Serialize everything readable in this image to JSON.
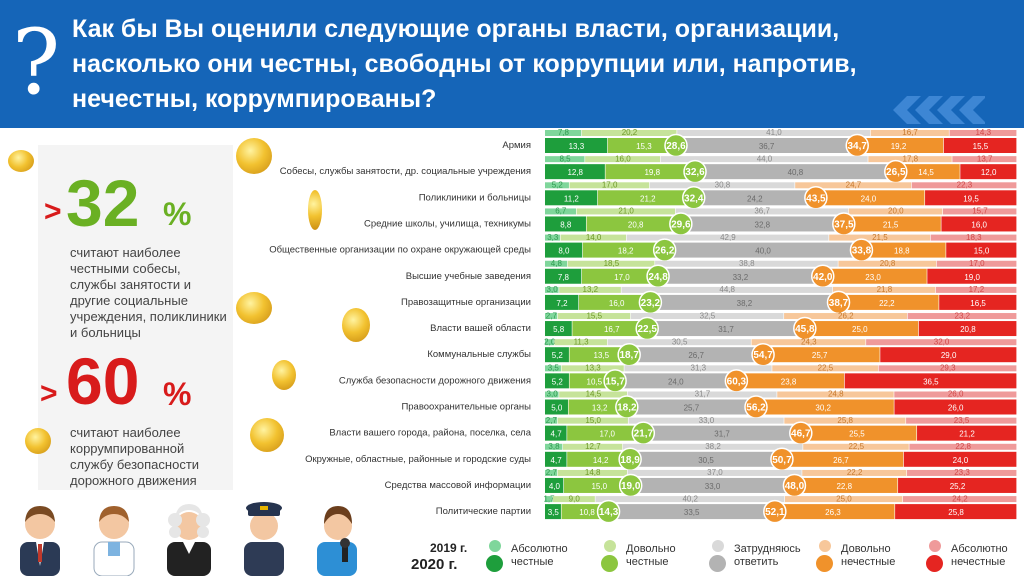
{
  "header": {
    "question_mark": "?",
    "title": "Как бы Вы оценили следующие органы власти, организации, насколько они честны, свободны от коррупции или, напротив, нечестны, коррумпированы?"
  },
  "left_panel": {
    "stat1_prefix": ">",
    "stat1_value": "32",
    "stat1_unit": "%",
    "stat1_text": "считают наиболее честными собесы, службы занятости и другие  социальные учреждения, поликлиники и больницы",
    "stat2_prefix": ">",
    "stat2_value": "60",
    "stat2_unit": "%",
    "stat2_text": "считают наиболее коррумпированной службу безопасности дорожного движения"
  },
  "legend": {
    "year_2019": "2019 г.",
    "year_2020": "2020 г.",
    "items": [
      {
        "label": "Абсолютно честные",
        "color_2019": "#7fd69b",
        "color_2020": "#1e9e3c"
      },
      {
        "label": "Довольно честные",
        "color_2019": "#c6e39a",
        "color_2020": "#8cc63f"
      },
      {
        "label": "Затрудняюсь ответить",
        "color_2019": "#d9d9d9",
        "color_2020": "#b3b3b3"
      },
      {
        "label": "Довольно нечестные",
        "color_2019": "#f7c79a",
        "color_2020": "#f0922b"
      },
      {
        "label": "Абсолютно нечестные",
        "color_2019": "#ef9a9a",
        "color_2020": "#e52521"
      }
    ]
  },
  "colors": {
    "abs_honest_2020": "#1e9e3c",
    "rather_honest_2020": "#8cc63f",
    "hard_2020": "#b3b3b3",
    "rather_dishonest_2020": "#f0922b",
    "abs_dishonest_2020": "#e52521",
    "abs_honest_2019": "#7fd69b",
    "rather_honest_2019": "#c6e39a",
    "hard_2019": "#d9d9d9",
    "rather_dishonest_2019": "#f7c79a",
    "abs_dishonest_2019": "#ef9a9a",
    "header_bg": "#1565b8",
    "accent_green": "#6ab023",
    "accent_red": "#d81b1b"
  },
  "chart_data": {
    "type": "bar",
    "orientation": "horizontal-stacked-100",
    "categories": [
      "Армия",
      "Собесы, службы занятости, др. социальные учреждения",
      "Поликлиники и больницы",
      "Средние школы, училища, техникумы",
      "Общественные организации по охране окружающей среды",
      "Высшие учебные заведения",
      "Правозащитные организации",
      "Власти вашей области",
      "Коммунальные службы",
      "Служба безопасности дорожного движения",
      "Правоохранительные органы",
      "Власти вашего города, района, поселка, села",
      "Окружные, областные, районные и городские суды",
      "Средства массовой информации",
      "Политические партии"
    ],
    "series_2019": {
      "abs_honest": [
        "7,8",
        "8,5",
        "5,2",
        "6,7",
        "3,3",
        "4,8",
        "3,0",
        "2,7",
        "2,0",
        "3,5",
        "3,0",
        "2,7",
        "3,8",
        "2,7",
        "1,7"
      ],
      "rather_honest": [
        "20,2",
        "16,0",
        "17,0",
        "21,0",
        "14,0",
        "18,5",
        "13,2",
        "15,5",
        "11,3",
        "13,3",
        "14,5",
        "15,0",
        "12,7",
        "14,8",
        "9,0"
      ],
      "hard": [
        "41,0",
        "44,0",
        "30,8",
        "36,7",
        "42,9",
        "38,8",
        "44,8",
        "32,5",
        "30,5",
        "31,3",
        "31,7",
        "33,0",
        "38,2",
        "37,0",
        "40,2"
      ],
      "rather_dishonest": [
        "16,7",
        "17,8",
        "24,7",
        "20,0",
        "21,5",
        "20,8",
        "21,8",
        "26,2",
        "24,3",
        "22,5",
        "24,8",
        "25,8",
        "22,5",
        "22,2",
        "25,0"
      ],
      "abs_dishonest": [
        "14,3",
        "13,7",
        "22,3",
        "15,7",
        "18,3",
        "17,0",
        "17,2",
        "23,2",
        "32,0",
        "29,3",
        "26,0",
        "23,5",
        "22,8",
        "23,3",
        "24,2"
      ]
    },
    "series_2020": {
      "abs_honest": [
        "13,3",
        "12,8",
        "11,2",
        "8,8",
        "8,0",
        "7,8",
        "7,2",
        "5,8",
        "5,2",
        "5,2",
        "5,0",
        "4,7",
        "4,7",
        "4,0",
        "3,5"
      ],
      "rather_honest": [
        "15,3",
        "19,8",
        "21,2",
        "20,8",
        "18,2",
        "17,0",
        "16,0",
        "16,7",
        "13,5",
        "10,5",
        "13,2",
        "17,0",
        "14,2",
        "15,0",
        "10,8"
      ],
      "hard": [
        "36,7",
        "40,8",
        "24,2",
        "32,8",
        "40,0",
        "33,2",
        "38,2",
        "31,7",
        "26,7",
        "24,0",
        "25,7",
        "31,7",
        "30,5",
        "33,0",
        "33,5"
      ],
      "rather_dishonest": [
        "19,2",
        "14,5",
        "24,0",
        "21,5",
        "18,8",
        "23,0",
        "22,2",
        "25,0",
        "25,7",
        "23,8",
        "30,2",
        "25,5",
        "26,7",
        "22,8",
        "26,3"
      ],
      "abs_dishonest": [
        "15,5",
        "12,0",
        "19,5",
        "16,0",
        "15,0",
        "19,0",
        "16,5",
        "20,8",
        "29,0",
        "36,5",
        "26,0",
        "21,2",
        "24,0",
        "25,2",
        "25,8"
      ]
    },
    "honest_total_2020": [
      "28,6",
      "32,6",
      "32,4",
      "29,6",
      "26,2",
      "24,8",
      "23,2",
      "22,5",
      "18,7",
      "15,7",
      "18,2",
      "21,7",
      "18,9",
      "19,0",
      "14,3"
    ],
    "dishonest_total_2020": [
      "34,7",
      "26,5",
      "43,5",
      "37,5",
      "33,8",
      "42,0",
      "38,7",
      "45,8",
      "54,7",
      "60,3",
      "56,2",
      "46,7",
      "50,7",
      "48,0",
      "52,1"
    ],
    "xlim": [
      0,
      100
    ]
  }
}
